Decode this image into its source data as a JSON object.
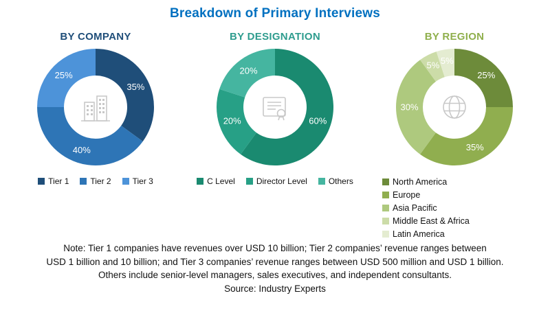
{
  "title": "Breakdown of Primary Interviews",
  "title_color": "#0070C0",
  "note_lines": [
    "Note: Tier 1 companies have revenues over USD 10 billion; Tier 2 companies’ revenue ranges between",
    "USD 1 billion and 10 billion; and Tier 3 companies’ revenue ranges between USD 500 million and USD 1 billion.",
    "Others include senior-level managers, sales executives, and independent consultants."
  ],
  "source": "Source: Industry Experts",
  "chart_data": [
    {
      "type": "pie",
      "variant": "donut",
      "heading": "BY COMPANY",
      "heading_color": "#1F4E79",
      "center_icon": "building-icon",
      "legend_position": "bottom-horizontal",
      "start_angle": 0,
      "series": [
        {
          "name": "Tier 1",
          "value": 35,
          "color": "#1F4E79"
        },
        {
          "name": "Tier 2",
          "value": 40,
          "color": "#2E75B6"
        },
        {
          "name": "Tier 3",
          "value": 25,
          "color": "#4D93D9"
        }
      ]
    },
    {
      "type": "pie",
      "variant": "donut",
      "heading": "BY DESIGNATION",
      "heading_color": "#2E9C8E",
      "center_icon": "certificate-icon",
      "legend_position": "bottom-horizontal",
      "start_angle": 0,
      "series": [
        {
          "name": "C Level",
          "value": 60,
          "color": "#1A8A70"
        },
        {
          "name": "Director Level",
          "value": 20,
          "color": "#27A086"
        },
        {
          "name": "Others",
          "value": 20,
          "color": "#45B5A0"
        }
      ]
    },
    {
      "type": "pie",
      "variant": "donut",
      "heading": "BY REGION",
      "heading_color": "#8FAF4C",
      "center_icon": "globe-icon",
      "legend_position": "bottom-vertical",
      "start_angle": 0,
      "series": [
        {
          "name": "North America",
          "value": 25,
          "color": "#6D8B3A"
        },
        {
          "name": "Europe",
          "value": 35,
          "color": "#90AE4F"
        },
        {
          "name": "Asia Pacific",
          "value": 30,
          "color": "#AEC97E"
        },
        {
          "name": "Middle East &  Africa",
          "value": 5,
          "color": "#CCDCA8"
        },
        {
          "name": "Latin America",
          "value": 5,
          "color": "#E4ECD1"
        }
      ]
    }
  ]
}
